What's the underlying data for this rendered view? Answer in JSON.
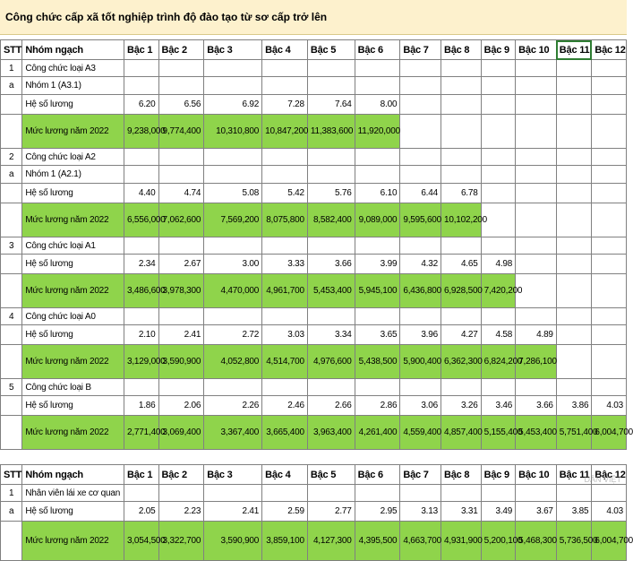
{
  "title": "Công chức cấp xã tốt nghiệp trình độ đào tạo từ sơ cấp trở lên",
  "header": [
    "STT",
    "Nhóm ngạch",
    "Bậc 1",
    "Bậc 2",
    "Bậc 3",
    "Bậc 4",
    "Bậc 5",
    "Bậc 6",
    "Bậc 7",
    "Bậc 8",
    "Bậc 9",
    "Bậc 10",
    "Bậc 11",
    "Bậc 12"
  ],
  "rows1": [
    {
      "type": "group",
      "stt": "1",
      "label": "Công chức loại A3"
    },
    {
      "type": "sub",
      "stt": "a",
      "label": "Nhóm 1 (A3.1)"
    },
    {
      "type": "coef",
      "label": "Hệ số lương",
      "vals": [
        "6.20",
        "6.56",
        "6.92",
        "7.28",
        "7.64",
        "8.00"
      ]
    },
    {
      "type": "sal",
      "label": "Mức lương năm 2022",
      "vals": [
        "9,238,000",
        "9,774,400",
        "10,310,800",
        "10,847,200",
        "11,383,600",
        "11,920,000"
      ]
    },
    {
      "type": "group",
      "stt": "2",
      "label": "Công chức loại A2"
    },
    {
      "type": "sub",
      "stt": "a",
      "label": "Nhóm 1 (A2.1)"
    },
    {
      "type": "coef",
      "label": "Hệ số lương",
      "vals": [
        "4.40",
        "4.74",
        "5.08",
        "5.42",
        "5.76",
        "6.10",
        "6.44",
        "6.78"
      ]
    },
    {
      "type": "sal",
      "label": "Mức lương năm 2022",
      "vals": [
        "6,556,000",
        "7,062,600",
        "7,569,200",
        "8,075,800",
        "8,582,400",
        "9,089,000",
        "9,595,600",
        "10,102,200"
      ]
    },
    {
      "type": "group",
      "stt": "3",
      "label": "Công chức loại A1"
    },
    {
      "type": "coef",
      "label": "Hệ số lương",
      "vals": [
        "2.34",
        "2.67",
        "3.00",
        "3.33",
        "3.66",
        "3.99",
        "4.32",
        "4.65",
        "4.98"
      ]
    },
    {
      "type": "sal",
      "label": "Mức lương năm 2022",
      "vals": [
        "3,486,600",
        "3,978,300",
        "4,470,000",
        "4,961,700",
        "5,453,400",
        "5,945,100",
        "6,436,800",
        "6,928,500",
        "7,420,200"
      ]
    },
    {
      "type": "group",
      "stt": "4",
      "label": "Công chức loại A0"
    },
    {
      "type": "coef",
      "label": "Hệ số lương",
      "vals": [
        "2.10",
        "2.41",
        "2.72",
        "3.03",
        "3.34",
        "3.65",
        "3.96",
        "4.27",
        "4.58",
        "4.89"
      ]
    },
    {
      "type": "sal",
      "label": "Mức lương năm 2022",
      "vals": [
        "3,129,000",
        "3,590,900",
        "4,052,800",
        "4,514,700",
        "4,976,600",
        "5,438,500",
        "5,900,400",
        "6,362,300",
        "6,824,200",
        "7,286,100"
      ]
    },
    {
      "type": "group",
      "stt": "5",
      "label": "Công chức loại B"
    },
    {
      "type": "coef",
      "label": "Hệ số lương",
      "vals": [
        "1.86",
        "2.06",
        "2.26",
        "2.46",
        "2.66",
        "2.86",
        "3.06",
        "3.26",
        "3.46",
        "3.66",
        "3.86",
        "4.03"
      ]
    },
    {
      "type": "sal",
      "label": "Mức lương năm 2022",
      "vals": [
        "2,771,400",
        "3,069,400",
        "3,367,400",
        "3,665,400",
        "3,963,400",
        "4,261,400",
        "4,559,400",
        "4,857,400",
        "5,155,400",
        "5,453,400",
        "5,751,400",
        "6,004,700"
      ]
    }
  ],
  "rows2": [
    {
      "type": "group",
      "stt": "1",
      "label": "Nhân viên lái xe cơ quan"
    },
    {
      "type": "coef",
      "stt": "a",
      "label": "Hệ số lương",
      "vals": [
        "2.05",
        "2.23",
        "2.41",
        "2.59",
        "2.77",
        "2.95",
        "3.13",
        "3.31",
        "3.49",
        "3.67",
        "3.85",
        "4.03"
      ]
    },
    {
      "type": "sal",
      "label": "Mức lương năm 2022",
      "vals": [
        "3,054,500",
        "3,322,700",
        "3,590,900",
        "3,859,100",
        "4,127,300",
        "4,395,500",
        "4,663,700",
        "4,931,900",
        "5,200,100",
        "5,468,300",
        "5,736,500",
        "6,004,700"
      ]
    }
  ],
  "watermark": "DÂN VIỆT",
  "colors": {
    "title_bg": "#fdf1cd",
    "salary_bg": "#8fd44b",
    "grid": "#808080",
    "selected_cell": "#2e7d32"
  }
}
